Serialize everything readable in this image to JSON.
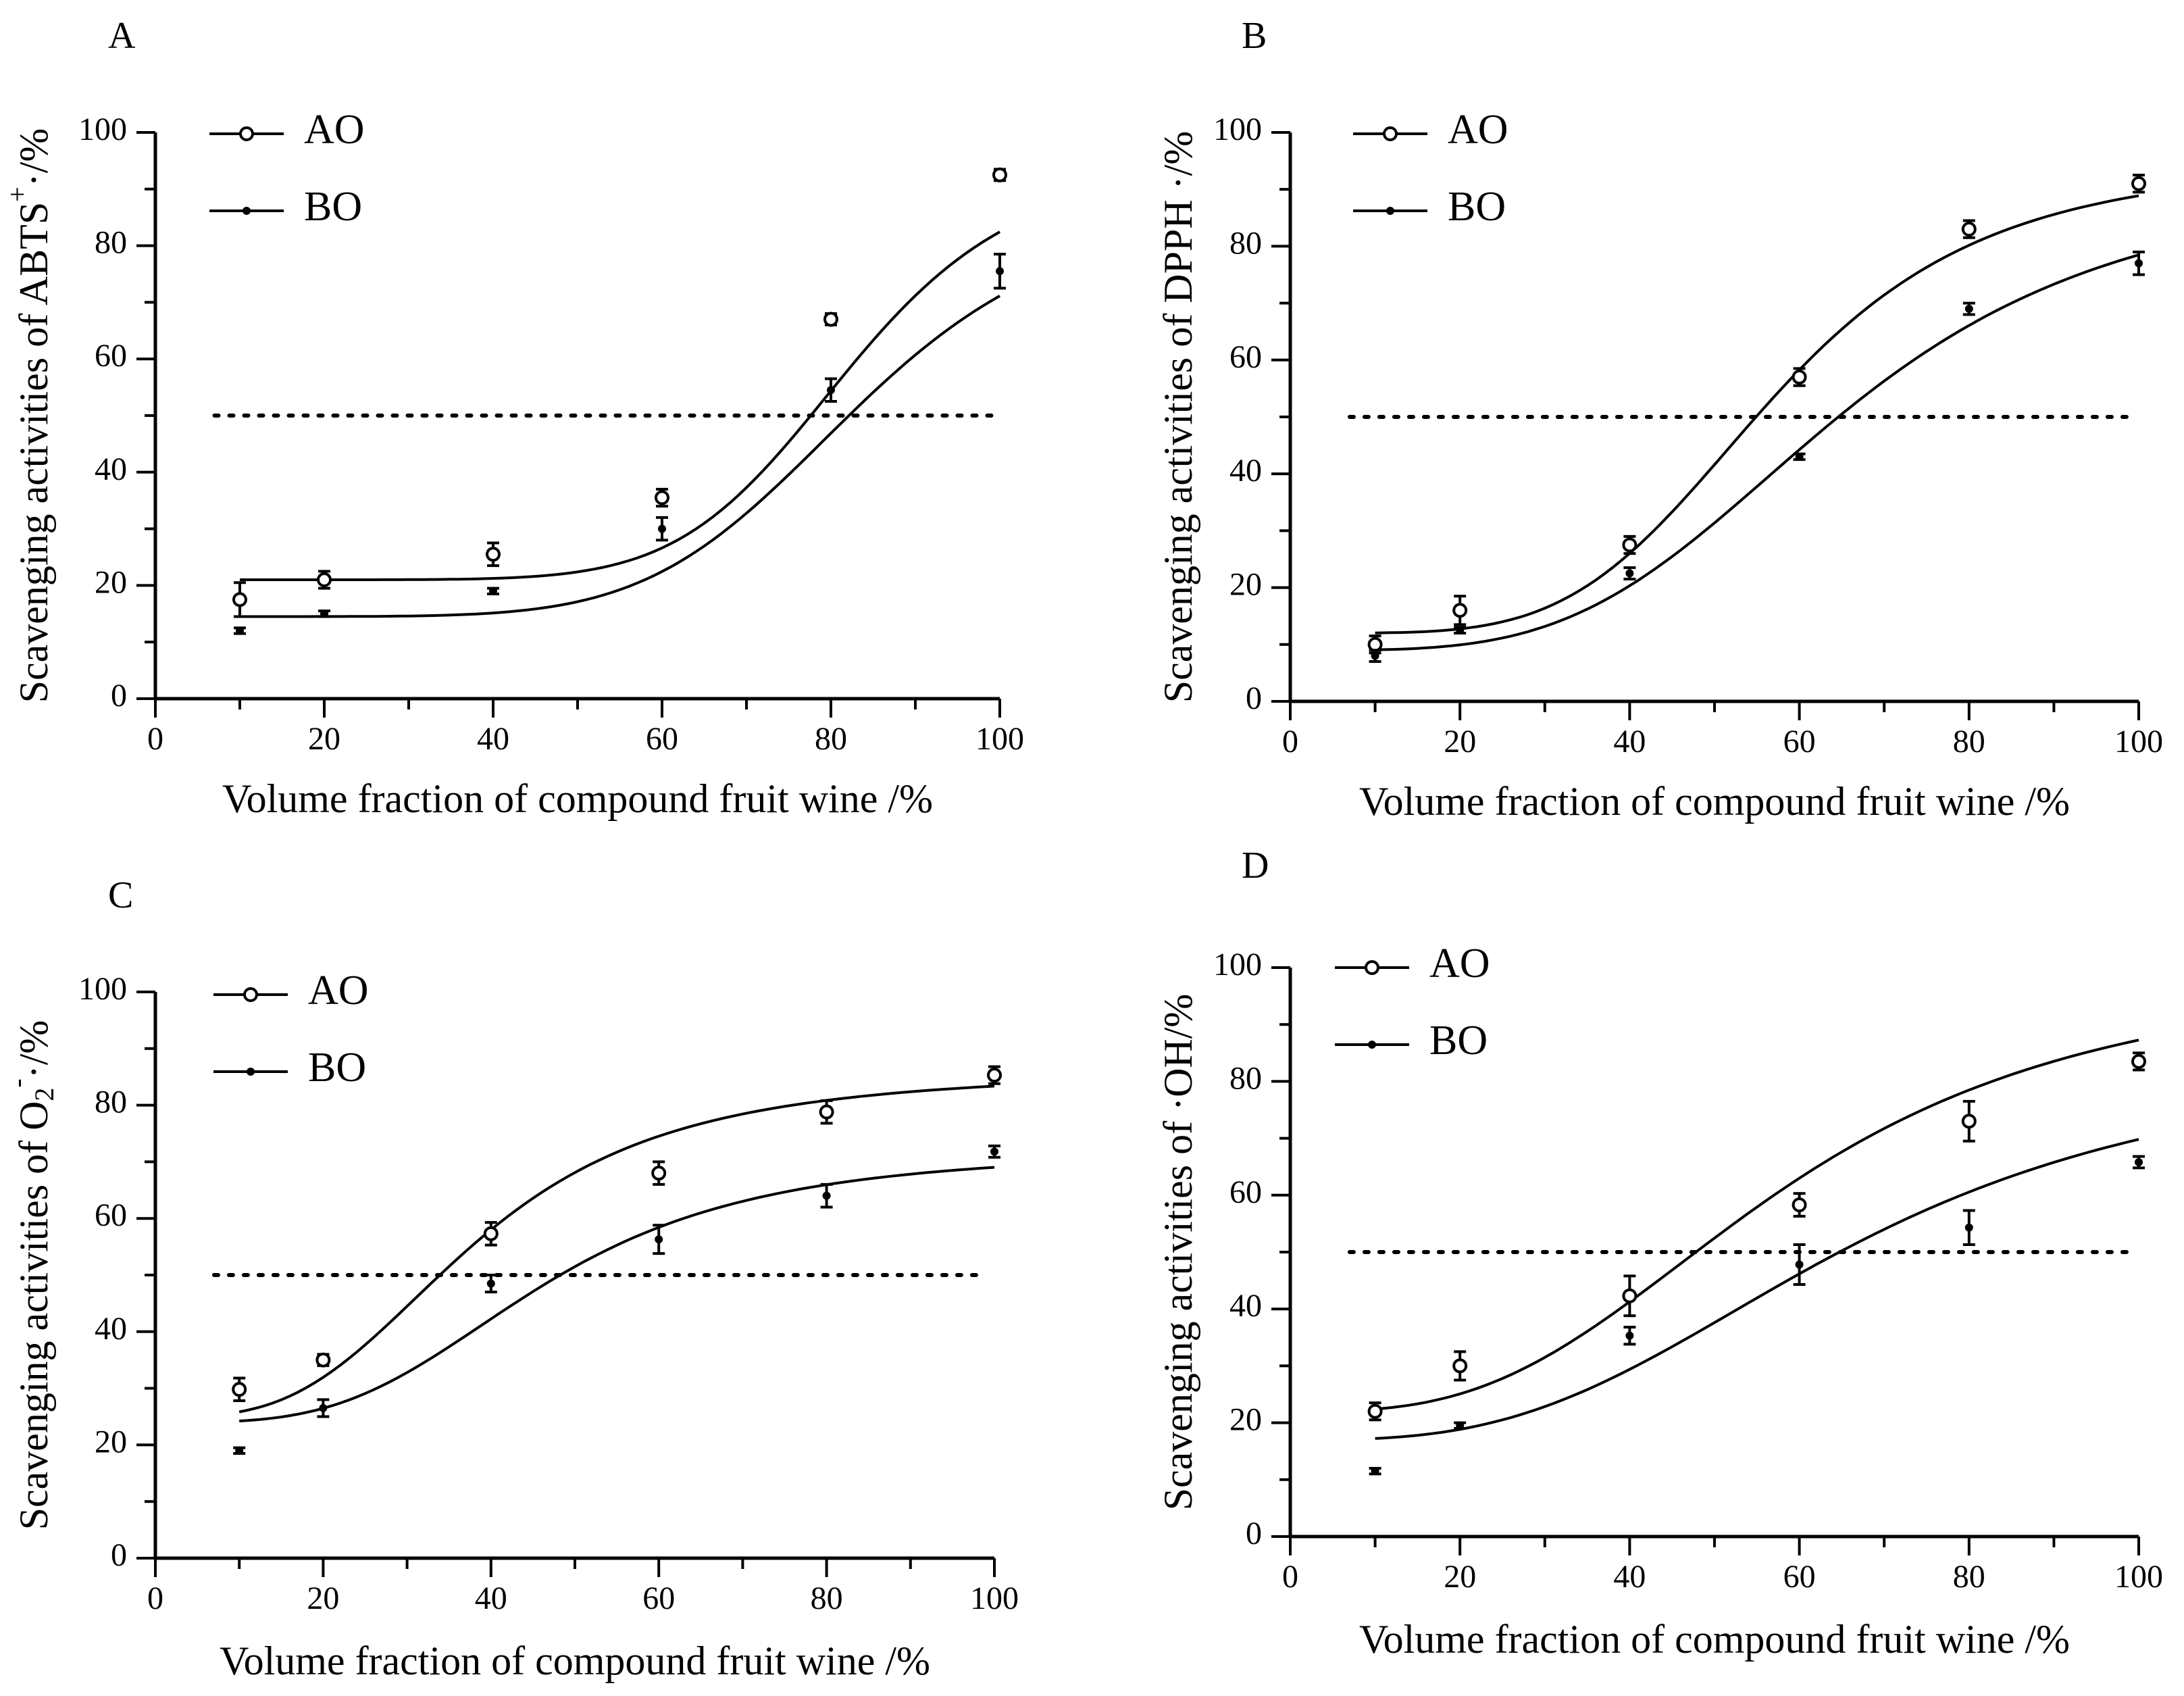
{
  "figure": {
    "legend_labels": [
      "AO",
      "BO"
    ],
    "threshold": 50
  },
  "chart_data": [
    {
      "panel": "A",
      "type": "scatter",
      "title": "",
      "xlabel": "Volume fraction of compound fruit wine /%",
      "ylabel": "Scavenging activities of ABTS",
      "ylabel_sup": "+",
      "ylabel_tail": "·/%",
      "xlim": [
        0,
        100
      ],
      "ylim": [
        0,
        100
      ],
      "xticks": [
        0,
        20,
        40,
        60,
        80,
        100
      ],
      "yticks": [
        0,
        20,
        40,
        60,
        80,
        100
      ],
      "reference_line": 50,
      "legend_position": "top-left",
      "x": [
        10,
        20,
        40,
        60,
        80,
        100
      ],
      "series": [
        {
          "name": "AO",
          "marker": "open-circle",
          "values": [
            17.5,
            21,
            25.5,
            35.5,
            67,
            92.5
          ],
          "errors": [
            3,
            1.5,
            2,
            1.5,
            1,
            1
          ],
          "fit": {
            "bottom": 21,
            "top": 95,
            "x50": 82,
            "hill": 8
          }
        },
        {
          "name": "BO",
          "marker": "filled-dot",
          "values": [
            12,
            15,
            19,
            30,
            54.5,
            75.5
          ],
          "errors": [
            0.5,
            0.5,
            0.5,
            2,
            2,
            3
          ],
          "fit": {
            "bottom": 14.5,
            "top": 88,
            "x50": 83,
            "hill": 6.5
          }
        }
      ]
    },
    {
      "panel": "B",
      "type": "scatter",
      "title": "",
      "xlabel": "Volume fraction of compound fruit wine /%",
      "ylabel": "Scavenging activities of DPPH ·/%",
      "ylabel_sup": "",
      "ylabel_tail": "",
      "xlim": [
        0,
        100
      ],
      "ylim": [
        0,
        100
      ],
      "xticks": [
        0,
        20,
        40,
        60,
        80,
        100
      ],
      "yticks": [
        0,
        20,
        40,
        60,
        80,
        100
      ],
      "reference_line": 50,
      "legend_position": "top-left",
      "x": [
        10,
        20,
        40,
        60,
        80,
        100
      ],
      "series": [
        {
          "name": "AO",
          "marker": "open-circle",
          "values": [
            10,
            16,
            27.5,
            57,
            83,
            91
          ],
          "errors": [
            1.5,
            2.5,
            1.5,
            1.5,
            1.5,
            1.5
          ],
          "fit": {
            "bottom": 12,
            "top": 95,
            "x50": 57,
            "hill": 4.5
          }
        },
        {
          "name": "BO",
          "marker": "filled-dot",
          "values": [
            8,
            12.5,
            22.5,
            43,
            69,
            77
          ],
          "errors": [
            1,
            0.5,
            1,
            0.5,
            1,
            2
          ],
          "fit": {
            "bottom": 9,
            "top": 92,
            "x50": 65,
            "hill": 3.8
          }
        }
      ]
    },
    {
      "panel": "C",
      "type": "scatter",
      "title": "",
      "xlabel": "Volume fraction of compound fruit wine /%",
      "ylabel": "Scavenging activities of O",
      "ylabel_sub": "2",
      "ylabel_sup": "-",
      "ylabel_tail": "·/%",
      "xlim": [
        0,
        100
      ],
      "ylim": [
        0,
        100
      ],
      "xticks": [
        0,
        20,
        40,
        60,
        80,
        100
      ],
      "yticks": [
        0,
        20,
        40,
        60,
        80,
        100
      ],
      "reference_line": 50,
      "legend_position": "top-left",
      "x": [
        10,
        20,
        40,
        60,
        80,
        100
      ],
      "series": [
        {
          "name": "AO",
          "marker": "open-circle",
          "values": [
            29.8,
            35,
            57.3,
            68,
            78.8,
            85.3
          ],
          "errors": [
            2,
            1,
            2,
            2,
            2,
            1.5
          ],
          "fit": {
            "bottom": 25,
            "top": 86,
            "x50": 38,
            "hill": 3.2
          }
        },
        {
          "name": "BO",
          "marker": "filled-dot",
          "values": [
            19,
            26.5,
            48.5,
            56.3,
            64,
            71.8
          ],
          "errors": [
            0.5,
            1.5,
            1.5,
            2.5,
            2,
            1
          ],
          "fit": {
            "bottom": 24,
            "top": 72,
            "x50": 46,
            "hill": 3.5
          }
        }
      ]
    },
    {
      "panel": "D",
      "type": "scatter",
      "title": "",
      "xlabel": "Volume fraction of compound fruit wine /%",
      "ylabel": "Scavenging activities of ·OH/%",
      "ylabel_sup": "",
      "ylabel_tail": "",
      "xlim": [
        0,
        100
      ],
      "ylim": [
        0,
        100
      ],
      "xticks": [
        0,
        20,
        40,
        60,
        80,
        100
      ],
      "yticks": [
        0,
        20,
        40,
        60,
        80,
        100
      ],
      "reference_line": 50,
      "legend_position": "top-left",
      "x": [
        10,
        20,
        40,
        60,
        80,
        100
      ],
      "series": [
        {
          "name": "AO",
          "marker": "open-circle",
          "values": [
            22,
            30,
            42.3,
            58.3,
            73,
            83.5
          ],
          "errors": [
            1.5,
            2.5,
            3.5,
            2,
            3.5,
            1.5
          ],
          "fit": {
            "bottom": 22,
            "top": 100,
            "x50": 58,
            "hill": 3
          }
        },
        {
          "name": "BO",
          "marker": "filled-dot",
          "values": [
            11.5,
            19.5,
            35.3,
            47.8,
            54.3,
            65.8
          ],
          "errors": [
            0.5,
            0.5,
            1.5,
            3.5,
            3,
            1
          ],
          "fit": {
            "bottom": 17,
            "top": 85,
            "x50": 66,
            "hill": 3
          }
        }
      ]
    }
  ]
}
